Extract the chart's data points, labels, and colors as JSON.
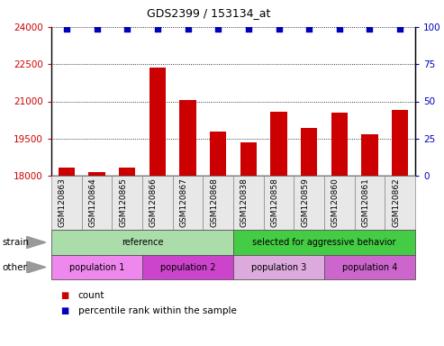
{
  "title": "GDS2399 / 153134_at",
  "samples": [
    "GSM120863",
    "GSM120864",
    "GSM120865",
    "GSM120866",
    "GSM120867",
    "GSM120868",
    "GSM120838",
    "GSM120858",
    "GSM120859",
    "GSM120860",
    "GSM120861",
    "GSM120862"
  ],
  "counts": [
    18320,
    18160,
    18310,
    22380,
    21050,
    19800,
    19360,
    20570,
    19930,
    20560,
    19660,
    20660
  ],
  "percentile_ranks": [
    99,
    99,
    99,
    99,
    99,
    99,
    99,
    99,
    99,
    99,
    99,
    99
  ],
  "bar_color": "#cc0000",
  "dot_color": "#0000bb",
  "ylim_left": [
    18000,
    24000
  ],
  "ylim_right": [
    0,
    100
  ],
  "yticks_left": [
    18000,
    19500,
    21000,
    22500,
    24000
  ],
  "yticks_right": [
    0,
    25,
    50,
    75,
    100
  ],
  "strain_groups": [
    {
      "label": "reference",
      "start": 0,
      "end": 6,
      "color": "#aaddaa"
    },
    {
      "label": "selected for aggressive behavior",
      "start": 6,
      "end": 12,
      "color": "#44cc44"
    }
  ],
  "other_groups": [
    {
      "label": "population 1",
      "start": 0,
      "end": 3,
      "color": "#ee88ee"
    },
    {
      "label": "population 2",
      "start": 3,
      "end": 6,
      "color": "#cc44cc"
    },
    {
      "label": "population 3",
      "start": 6,
      "end": 9,
      "color": "#ddaadd"
    },
    {
      "label": "population 4",
      "start": 9,
      "end": 12,
      "color": "#cc66cc"
    }
  ],
  "tick_label_color_left": "#cc0000",
  "tick_label_color_right": "#0000bb"
}
